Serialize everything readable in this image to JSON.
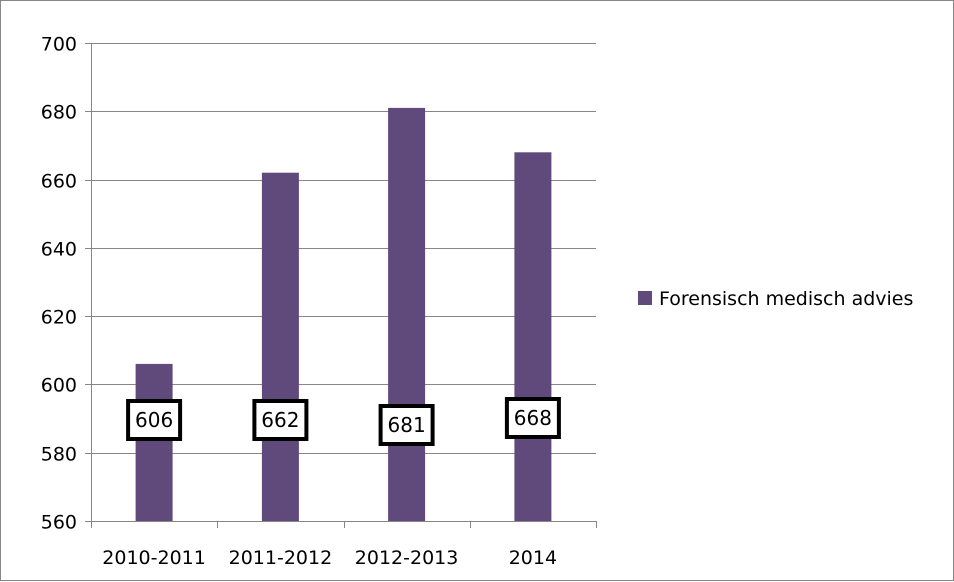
{
  "chart_data": {
    "type": "bar",
    "title": "",
    "xlabel": "",
    "ylabel": "",
    "categories": [
      "2010-2011",
      "2011-2012",
      "2012-2013",
      "2014"
    ],
    "series": [
      {
        "name": "Forensisch medisch advies",
        "values": [
          606,
          662,
          681,
          668
        ],
        "color": "#604a7b"
      }
    ],
    "data_labels": [
      "606",
      "662",
      "681",
      "668"
    ],
    "ylim": [
      560,
      700
    ],
    "y_ticks": [
      560,
      580,
      600,
      620,
      640,
      660,
      680,
      700
    ],
    "grid": true,
    "legend_position": "right",
    "colors": {
      "bar": "#604a7b",
      "grid": "#868686",
      "axis": "#868686",
      "label_box_border": "#000000"
    }
  }
}
